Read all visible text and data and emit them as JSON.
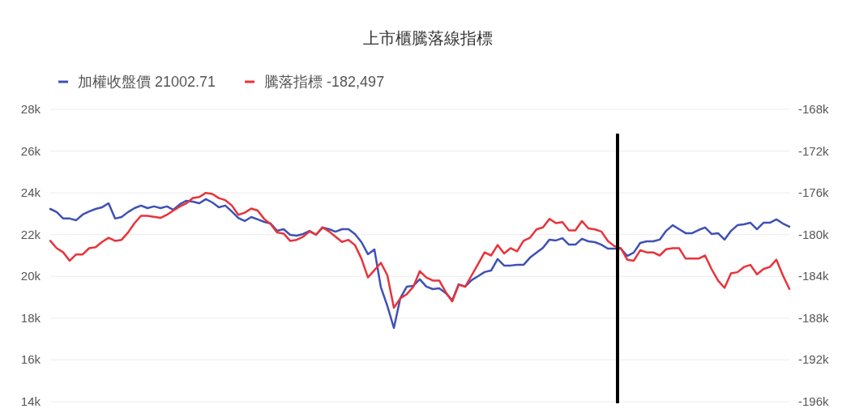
{
  "chart_data": {
    "type": "line",
    "title": "上市櫃騰落線指標",
    "categories": [
      null,
      null,
      null,
      null,
      null,
      null,
      null,
      null,
      null,
      null,
      null,
      null,
      null,
      null,
      null,
      null,
      null,
      null,
      null,
      null,
      null,
      null,
      null,
      null,
      null,
      null,
      null,
      null,
      null,
      null,
      null,
      null,
      null,
      null,
      null,
      null,
      null,
      null,
      null,
      null,
      null,
      null,
      null,
      null,
      null,
      null,
      null,
      null,
      null,
      null,
      null,
      null,
      null,
      null,
      null,
      null,
      null,
      null,
      null,
      null,
      null,
      null,
      null,
      null,
      null,
      null,
      null,
      null,
      null,
      null,
      null,
      null,
      null,
      null,
      null,
      null,
      null,
      null,
      null,
      null,
      null,
      null,
      null,
      null,
      null,
      null,
      null,
      null,
      null,
      null,
      null,
      null,
      null,
      null,
      null,
      null,
      null,
      null,
      null,
      null,
      null,
      null,
      null,
      null,
      null,
      null,
      null,
      null,
      null,
      null,
      null,
      null,
      null,
      null,
      null
    ],
    "series": [
      {
        "name": "加權收盤價 21002.71",
        "color": "#3f51b5",
        "values": [
          23230,
          23080,
          22770,
          22770,
          22690,
          22960,
          23110,
          23230,
          23310,
          23500,
          22770,
          22840,
          23080,
          23270,
          23390,
          23270,
          23350,
          23270,
          23350,
          23190,
          23460,
          23620,
          23580,
          23500,
          23700,
          23540,
          23310,
          23390,
          23110,
          22800,
          22650,
          22840,
          22730,
          22610,
          22530,
          22180,
          22260,
          21990,
          21950,
          22030,
          22180,
          21990,
          22340,
          22260,
          22140,
          22260,
          22260,
          22030,
          21640,
          21060,
          21290,
          19470,
          18580,
          17530,
          18960,
          19510,
          19550,
          19860,
          19510,
          19390,
          19430,
          19200,
          18850,
          19620,
          19510,
          19820,
          20010,
          20210,
          20280,
          20830,
          20520,
          20520,
          20550,
          20550,
          20900,
          21140,
          21370,
          21760,
          21720,
          21830,
          21520,
          21520,
          21800,
          21680,
          21640,
          21520,
          21330,
          21330,
          21330,
          20980,
          21140,
          21600,
          21680,
          21680,
          21760,
          22180,
          22450,
          22260,
          22070,
          22070,
          22220,
          22340,
          22030,
          22070,
          21760,
          22180,
          22450,
          22490,
          22570,
          22260,
          22570,
          22570,
          22730,
          22530,
          22380
        ]
      },
      {
        "name": "騰落指標 -182,497",
        "color": "#e8333a",
        "axis": "y2",
        "values": [
          -180600,
          -181300,
          -181700,
          -182500,
          -181900,
          -181900,
          -181300,
          -181200,
          -180700,
          -180300,
          -180600,
          -180500,
          -179800,
          -178900,
          -178200,
          -178200,
          -178300,
          -178400,
          -178100,
          -177700,
          -177300,
          -177000,
          -176500,
          -176400,
          -176000,
          -176100,
          -176500,
          -176700,
          -177200,
          -178100,
          -177900,
          -177500,
          -177700,
          -178500,
          -179000,
          -179800,
          -179900,
          -180600,
          -180500,
          -180200,
          -179700,
          -180000,
          -179300,
          -179700,
          -180200,
          -180700,
          -180500,
          -181000,
          -182300,
          -184100,
          -183400,
          -182700,
          -183900,
          -187000,
          -186100,
          -185700,
          -185000,
          -183500,
          -184100,
          -184400,
          -184400,
          -185500,
          -186400,
          -184800,
          -185000,
          -183900,
          -182800,
          -181700,
          -182000,
          -181000,
          -181800,
          -181300,
          -181600,
          -180600,
          -180300,
          -179500,
          -179300,
          -178500,
          -178900,
          -178800,
          -179600,
          -179600,
          -178700,
          -179400,
          -179500,
          -179700,
          -180600,
          -181100,
          -181300,
          -182400,
          -182500,
          -181500,
          -181700,
          -181700,
          -182000,
          -181400,
          -181300,
          -181300,
          -182300,
          -182300,
          -182300,
          -182000,
          -183300,
          -184400,
          -185100,
          -183700,
          -183600,
          -183100,
          -182900,
          -183800,
          -183300,
          -183100,
          -182400,
          -183900,
          -185200
        ]
      }
    ],
    "ylim": [
      14000,
      28000
    ],
    "yticks": [
      {
        "value": 14000,
        "label": "14k"
      },
      {
        "value": 16000,
        "label": "16k"
      },
      {
        "value": 18000,
        "label": "18k"
      },
      {
        "value": 20000,
        "label": "20k"
      },
      {
        "value": 22000,
        "label": "22k"
      },
      {
        "value": 24000,
        "label": "24k"
      },
      {
        "value": 26000,
        "label": "26k"
      },
      {
        "value": 28000,
        "label": "28k"
      }
    ],
    "y2lim": [
      -196000,
      -168000
    ],
    "y2ticks": [
      {
        "value": -196000,
        "label": "-196k"
      },
      {
        "value": -192000,
        "label": "-192k"
      },
      {
        "value": -188000,
        "label": "-188k"
      },
      {
        "value": -184000,
        "label": "-184k"
      },
      {
        "value": -180000,
        "label": "-180k"
      },
      {
        "value": -176000,
        "label": "-176k"
      },
      {
        "value": -172000,
        "label": "-172k"
      },
      {
        "value": -168000,
        "label": "-168k"
      }
    ],
    "grid": "y",
    "legend": "top left",
    "marker": "none",
    "line_style": "solid"
  }
}
